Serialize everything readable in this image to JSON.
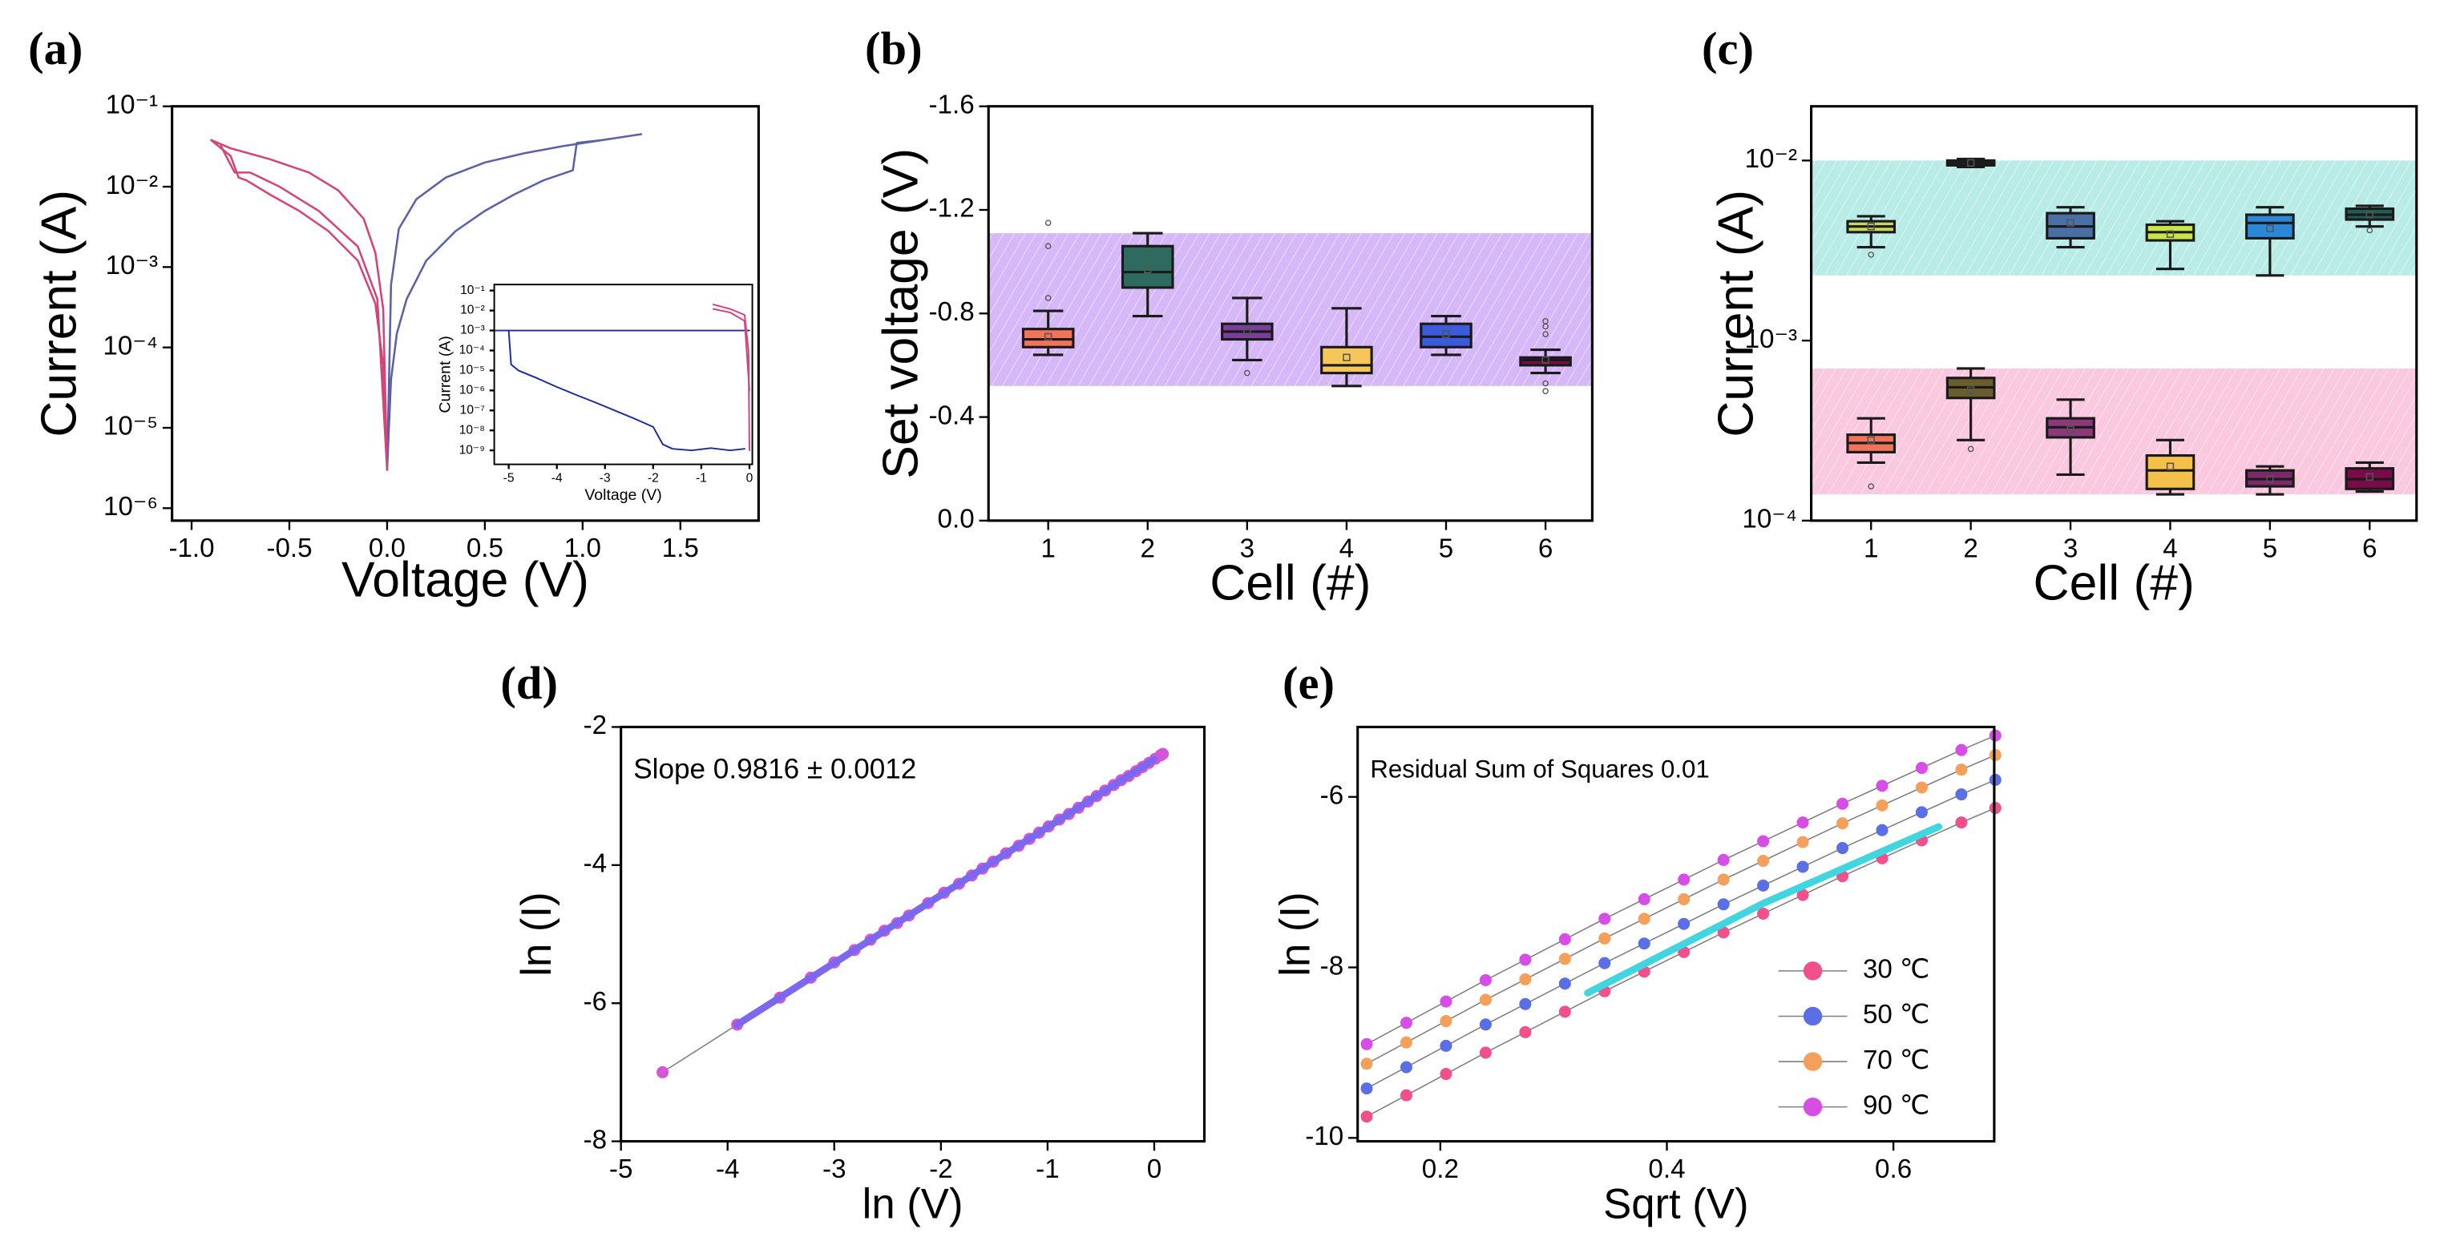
{
  "chart_data": [
    {
      "type": "line",
      "panel": "(a)",
      "xlabel": "Voltage (V)",
      "ylabel": "Current (A)",
      "xlim": [
        -1.1,
        1.9
      ],
      "xticks": [
        {
          "value": -1,
          "label": "-1.0"
        },
        -0.5,
        {
          "value": 0,
          "label": "0.0"
        },
        0.5,
        {
          "value": 1,
          "label": "1.0"
        },
        1.5
      ],
      "ylog": true,
      "ylim": [
        7e-07,
        0.1
      ],
      "yticks": [
        {
          "value": 1e-06,
          "label": "10⁻⁶"
        },
        {
          "value": 1e-05,
          "label": "10⁻⁵"
        },
        {
          "value": 0.0001,
          "label": "10⁻⁴"
        },
        {
          "value": 0.001,
          "label": "10⁻³"
        },
        {
          "value": 0.01,
          "label": "10⁻²"
        },
        {
          "value": 0.1,
          "label": "10⁻¹"
        }
      ],
      "series": [
        {
          "color": "#5b60a8",
          "x": [
            0,
            0.02,
            0.05,
            0.1,
            0.2,
            0.35,
            0.5,
            0.65,
            0.8,
            0.95,
            0.97,
            1.1,
            1.3,
            1.1,
            0.9,
            0.7,
            0.5,
            0.3,
            0.15,
            0.06,
            0.02,
            0
          ],
          "values": [
            3e-06,
            4e-05,
            0.00015,
            0.0004,
            0.0012,
            0.0028,
            0.005,
            0.008,
            0.012,
            0.016,
            0.035,
            0.038,
            0.045,
            0.038,
            0.032,
            0.026,
            0.02,
            0.013,
            0.007,
            0.003,
            0.0006,
            3e-06
          ]
        },
        {
          "color": "#d44478",
          "x": [
            0,
            -0.02,
            -0.06,
            -0.12,
            -0.25,
            -0.4,
            -0.6,
            -0.8,
            -0.9,
            -0.8,
            -0.76,
            -0.72,
            -0.6,
            -0.45,
            -0.3,
            -0.15,
            -0.06,
            -0.02,
            0
          ],
          "values": [
            3e-06,
            0.0003,
            0.0015,
            0.004,
            0.009,
            0.015,
            0.022,
            0.03,
            0.038,
            0.024,
            0.013,
            0.012,
            0.008,
            0.005,
            0.0028,
            0.0012,
            0.00035,
            6e-05,
            3e-06
          ]
        },
        {
          "color": "#d44478",
          "x": [
            -0.85,
            -0.78,
            -0.7,
            -0.55,
            -0.35,
            -0.15,
            -0.05,
            0
          ],
          "values": [
            0.032,
            0.015,
            0.015,
            0.01,
            0.005,
            0.0018,
            0.0004,
            3e-06
          ]
        }
      ]
    },
    {
      "type": "line",
      "xlabel": "Voltage (V)",
      "ylabel": "Current (A)",
      "xlim": [
        -5.3,
        0.06
      ],
      "xticks": [
        -5,
        -4,
        -3,
        -2,
        -1,
        0
      ],
      "ylog": true,
      "ylim": [
        2e-10,
        0.2
      ],
      "yticks": [
        {
          "value": 1e-09,
          "label": "10⁻⁹"
        },
        {
          "value": 1e-08,
          "label": "10⁻⁸"
        },
        {
          "value": 1e-07,
          "label": "10⁻⁷"
        },
        {
          "value": 1e-06,
          "label": "10⁻⁶"
        },
        {
          "value": 1e-05,
          "label": "10⁻⁵"
        },
        {
          "value": 0.0001,
          "label": "10⁻⁴"
        },
        {
          "value": 0.001,
          "label": "10⁻³"
        },
        {
          "value": 0.01,
          "label": "10⁻²"
        },
        {
          "value": 0.1,
          "label": "10⁻¹"
        }
      ],
      "series": [
        {
          "color": "#1a2aa0",
          "x": [
            -5.3,
            0
          ],
          "values": [
            0.001,
            0.001
          ]
        },
        {
          "color": "#1a2aa0",
          "x": [
            -5.0,
            -4.95,
            -4.8,
            -4.4,
            -4.0,
            -3.6,
            -3.2,
            -2.8,
            -2.4,
            -2.0,
            -1.8,
            -1.6,
            -1.2,
            -0.8,
            -0.4,
            -0.1
          ],
          "values": [
            0.001,
            2e-05,
            1e-05,
            4e-06,
            1.5e-06,
            6e-07,
            2.5e-07,
            1e-07,
            4e-08,
            1.5e-08,
            2e-09,
            1.2e-09,
            1e-09,
            1.3e-09,
            1e-09,
            1.2e-09
          ]
        },
        {
          "color": "#d4407a",
          "x": [
            -0.75,
            -0.4,
            -0.1,
            -0.02,
            0
          ],
          "values": [
            0.02,
            0.012,
            0.006,
            0.0001,
            1e-09
          ]
        },
        {
          "color": "#d4407a",
          "x": [
            -0.75,
            -0.4,
            -0.1,
            0
          ],
          "values": [
            0.012,
            0.008,
            0.003,
            1e-06
          ]
        }
      ]
    },
    {
      "type": "box",
      "panel": "(b)",
      "xlabel": "Cell (#)",
      "ylabel": "Set voltage (V)",
      "categories": [
        "1",
        "2",
        "3",
        "4",
        "5",
        "6"
      ],
      "ylim": [
        0,
        -1.6
      ],
      "yticks": [
        {
          "value": 0,
          "label": "0.0"
        },
        -0.4,
        -0.8,
        -1.2,
        -1.6
      ],
      "bands": [
        {
          "range": [
            -0.52,
            -1.11
          ],
          "color": "#b57bf0"
        }
      ],
      "series": [
        {
          "boxes": [
            {
              "color": "#f0735a",
              "min": -0.81,
              "q1": -0.74,
              "median": -0.7,
              "q3": -0.67,
              "max": -0.64,
              "mean": -0.71,
              "outliers": [
                -1.15,
                -1.06,
                -0.86
              ]
            },
            {
              "color": "#2e6b5e",
              "min": -1.11,
              "q1": -1.06,
              "median": -0.96,
              "q3": -0.9,
              "max": -0.79,
              "mean": -0.97,
              "outliers": []
            },
            {
              "color": "#7a3f9a",
              "min": -0.86,
              "q1": -0.76,
              "median": -0.73,
              "q3": -0.7,
              "max": -0.62,
              "mean": -0.73,
              "outliers": [
                -0.57
              ]
            },
            {
              "color": "#f5c75a",
              "min": -0.82,
              "q1": -0.67,
              "median": -0.6,
              "q3": -0.57,
              "max": -0.52,
              "mean": -0.63,
              "outliers": []
            },
            {
              "color": "#3b5bdb",
              "min": -0.79,
              "q1": -0.76,
              "median": -0.71,
              "q3": -0.67,
              "max": -0.64,
              "mean": -0.72,
              "outliers": []
            },
            {
              "color": "#7a0a4a",
              "min": -0.66,
              "q1": -0.63,
              "median": -0.62,
              "q3": -0.6,
              "max": -0.57,
              "mean": -0.62,
              "outliers": [
                -0.77,
                -0.75,
                -0.72,
                -0.53,
                -0.5
              ]
            }
          ]
        }
      ]
    },
    {
      "type": "box",
      "panel": "(c)",
      "xlabel": "Cell (#)",
      "ylabel": "Current (A)",
      "categories": [
        "1",
        "2",
        "3",
        "4",
        "5",
        "6"
      ],
      "ylog": true,
      "ylim": [
        0.0001,
        0.02
      ],
      "yticks": [
        {
          "value": 0.0001,
          "label": "10⁻⁴"
        },
        {
          "value": 0.001,
          "label": "10⁻³"
        },
        {
          "value": 0.01,
          "label": "10⁻²"
        }
      ],
      "bands": [
        {
          "range": [
            0.0023,
            0.01
          ],
          "color": "#7fdcd4"
        },
        {
          "range": [
            0.00014,
            0.0007
          ],
          "color": "#f59ac4"
        }
      ],
      "series": [
        {
          "boxes": [
            {
              "color": "#c9d65c",
              "min": 0.0033,
              "q1": 0.004,
              "median": 0.0043,
              "q3": 0.0046,
              "max": 0.0049,
              "mean": 0.0043,
              "outliers": [
                0.003
              ]
            },
            {
              "color": "#1f5c55",
              "min": 0.0092,
              "q1": 0.0094,
              "median": 0.0097,
              "q3": 0.01,
              "max": 0.0102,
              "mean": 0.0097,
              "outliers": []
            },
            {
              "color": "#4a6fa5",
              "min": 0.0033,
              "q1": 0.0037,
              "median": 0.0043,
              "q3": 0.0051,
              "max": 0.0055,
              "mean": 0.0045,
              "outliers": []
            },
            {
              "color": "#c8e64a",
              "min": 0.0025,
              "q1": 0.0036,
              "median": 0.004,
              "q3": 0.0044,
              "max": 0.0046,
              "mean": 0.0039,
              "outliers": []
            },
            {
              "color": "#2b88d8",
              "min": 0.0023,
              "q1": 0.0037,
              "median": 0.0045,
              "q3": 0.005,
              "max": 0.0055,
              "mean": 0.0042,
              "outliers": []
            },
            {
              "color": "#1f5c55",
              "min": 0.0043,
              "q1": 0.0047,
              "median": 0.005,
              "q3": 0.0054,
              "max": 0.0056,
              "mean": 0.005,
              "outliers": [
                0.0041
              ]
            }
          ]
        },
        {
          "boxes": [
            {
              "color": "#f0735a",
              "min": 0.00021,
              "q1": 0.00024,
              "median": 0.00027,
              "q3": 0.0003,
              "max": 0.00037,
              "mean": 0.00028,
              "outliers": [
                0.000155
              ]
            },
            {
              "color": "#6b5e2e",
              "min": 0.00028,
              "q1": 0.00048,
              "median": 0.00055,
              "q3": 0.00062,
              "max": 0.0007,
              "mean": 0.00053,
              "outliers": [
                0.00025
              ]
            },
            {
              "color": "#8a3a78",
              "min": 0.00018,
              "q1": 0.00029,
              "median": 0.00033,
              "q3": 0.00037,
              "max": 0.00047,
              "mean": 0.00032,
              "outliers": []
            },
            {
              "color": "#f5c04a",
              "min": 0.00014,
              "q1": 0.00015,
              "median": 0.00019,
              "q3": 0.00023,
              "max": 0.00028,
              "mean": 0.0002,
              "outliers": []
            },
            {
              "color": "#7a2a6a",
              "min": 0.00014,
              "q1": 0.000155,
              "median": 0.00017,
              "q3": 0.00019,
              "max": 0.0002,
              "mean": 0.00017,
              "outliers": []
            },
            {
              "color": "#7a0a4a",
              "min": 0.000145,
              "q1": 0.00015,
              "median": 0.00017,
              "q3": 0.000195,
              "max": 0.00021,
              "mean": 0.000175,
              "outliers": []
            }
          ]
        }
      ]
    },
    {
      "type": "scatter",
      "panel": "(d)",
      "xlabel": "ln (V)",
      "ylabel": "ln (I)",
      "annotation": "Slope 0.9816 ± 0.0012",
      "line_color": "#7f7f7f",
      "xlim": [
        -5,
        0.47
      ],
      "xticks": [
        -5,
        -4,
        -3,
        -2,
        -1,
        0
      ],
      "ylim": [
        -8,
        -2
      ],
      "yticks": [
        -8,
        -6,
        -4,
        -2
      ],
      "series": [
        {
          "color": "#d455d8",
          "markers": true,
          "x": [
            -4.61,
            -3.91,
            -3.51,
            -3.22,
            -3.0,
            -2.81,
            -2.66,
            -2.53,
            -2.41,
            -2.3,
            -2.12,
            -1.97,
            -1.83,
            -1.71,
            -1.61,
            -1.51,
            -1.39,
            -1.27,
            -1.17,
            -1.08,
            -0.99,
            -0.89,
            -0.8,
            -0.71,
            -0.62,
            -0.54,
            -0.46,
            -0.38,
            -0.31,
            -0.24,
            -0.17,
            -0.11,
            -0.05,
            0.01,
            0.06,
            0.08
          ],
          "values": [
            -7.0,
            -6.31,
            -5.92,
            -5.63,
            -5.41,
            -5.23,
            -5.08,
            -4.95,
            -4.84,
            -4.73,
            -4.55,
            -4.4,
            -4.27,
            -4.15,
            -4.05,
            -3.95,
            -3.83,
            -3.72,
            -3.62,
            -3.53,
            -3.44,
            -3.34,
            -3.26,
            -3.17,
            -3.08,
            -3.0,
            -2.92,
            -2.84,
            -2.77,
            -2.71,
            -2.64,
            -2.58,
            -2.52,
            -2.46,
            -2.41,
            -2.39
          ]
        },
        {
          "color": "#7b68ee",
          "x": [
            -3.91,
            0
          ],
          "values": [
            -6.31,
            -2.47
          ]
        }
      ]
    },
    {
      "type": "line",
      "panel": "(e)",
      "xlabel": "Sqrt (V)",
      "ylabel": "ln (I)",
      "annotation": "Residual Sum of Squares 0.01",
      "line_color": "#7f7f7f",
      "legend": "lower right",
      "xlim": [
        0.127,
        0.689
      ],
      "xticks": [
        0.2,
        0.4,
        0.6
      ],
      "ylim": [
        -10.04,
        -5.18
      ],
      "yticks": [
        -10,
        -8,
        -6
      ],
      "series": [
        {
          "name": "30 ℃",
          "color": "#f0508c",
          "markers": true,
          "x": [
            0.135,
            0.17,
            0.205,
            0.24,
            0.275,
            0.31,
            0.345,
            0.38,
            0.415,
            0.45,
            0.485,
            0.52,
            0.555,
            0.59,
            0.625,
            0.66,
            0.69
          ],
          "values": [
            -9.75,
            -9.5,
            -9.25,
            -9.0,
            -8.76,
            -8.52,
            -8.28,
            -8.05,
            -7.82,
            -7.59,
            -7.37,
            -7.15,
            -6.93,
            -6.72,
            -6.51,
            -6.3,
            -6.13
          ]
        },
        {
          "name": "50 ℃",
          "color": "#5a6ee6",
          "markers": true,
          "x": [
            0.135,
            0.17,
            0.205,
            0.24,
            0.275,
            0.31,
            0.345,
            0.38,
            0.415,
            0.45,
            0.485,
            0.52,
            0.555,
            0.59,
            0.625,
            0.66,
            0.69
          ],
          "values": [
            -9.42,
            -9.17,
            -8.92,
            -8.67,
            -8.43,
            -8.19,
            -7.95,
            -7.72,
            -7.49,
            -7.26,
            -7.04,
            -6.82,
            -6.6,
            -6.39,
            -6.18,
            -5.97,
            -5.8
          ]
        },
        {
          "name": "70 ℃",
          "color": "#f5a05a",
          "markers": true,
          "x": [
            0.135,
            0.17,
            0.205,
            0.24,
            0.275,
            0.31,
            0.345,
            0.38,
            0.415,
            0.45,
            0.485,
            0.52,
            0.555,
            0.59,
            0.625,
            0.66,
            0.69
          ],
          "values": [
            -9.13,
            -8.88,
            -8.63,
            -8.38,
            -8.14,
            -7.9,
            -7.66,
            -7.43,
            -7.2,
            -6.97,
            -6.75,
            -6.53,
            -6.31,
            -6.1,
            -5.89,
            -5.68,
            -5.51
          ]
        },
        {
          "name": "90 ℃",
          "color": "#d64ee6",
          "markers": true,
          "x": [
            0.135,
            0.17,
            0.205,
            0.24,
            0.275,
            0.31,
            0.345,
            0.38,
            0.415,
            0.45,
            0.485,
            0.52,
            0.555,
            0.59,
            0.625,
            0.66,
            0.69
          ],
          "values": [
            -8.9,
            -8.65,
            -8.4,
            -8.15,
            -7.91,
            -7.67,
            -7.43,
            -7.2,
            -6.97,
            -6.74,
            -6.52,
            -6.3,
            -6.08,
            -5.87,
            -5.66,
            -5.45,
            -5.28
          ]
        },
        {
          "color": "#3fd6e0",
          "x": [
            0.33,
            0.485,
            0.64
          ],
          "values": [
            -8.3,
            -7.25,
            -6.35
          ]
        }
      ]
    }
  ]
}
